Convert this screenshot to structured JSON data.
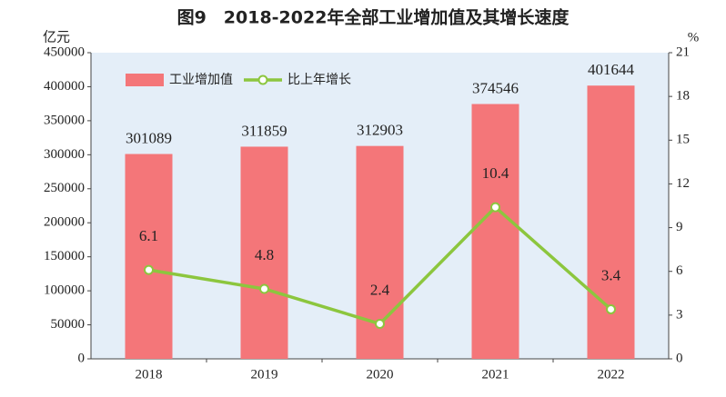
{
  "chart_data": {
    "type": "bar",
    "title": "图9　2018-2022年全部工业增加值及其增长速度",
    "y_label": "亿元",
    "y2_label": "%",
    "categories": [
      "2018",
      "2019",
      "2020",
      "2021",
      "2022"
    ],
    "series": [
      {
        "name": "工业增加值",
        "type": "bar",
        "color": "#f47679",
        "values": [
          301089,
          311859,
          312903,
          374546,
          401644
        ]
      },
      {
        "name": "比上年增长",
        "type": "line",
        "axis": "y2",
        "color": "#8cc63e",
        "values": [
          6.1,
          4.8,
          2.4,
          10.4,
          3.4
        ]
      }
    ],
    "ylim": [
      0,
      450000
    ],
    "yticks": [
      0,
      50000,
      100000,
      150000,
      200000,
      250000,
      300000,
      350000,
      400000,
      450000
    ],
    "y2lim": [
      0,
      21
    ],
    "y2ticks": [
      0,
      3,
      6,
      9,
      12,
      15,
      18,
      21
    ],
    "legend": "upper left",
    "background": "#e4eef8"
  }
}
